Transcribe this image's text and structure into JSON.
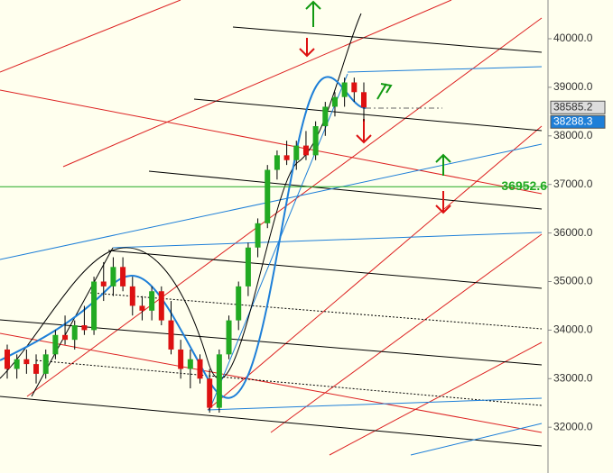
{
  "chart_data": {
    "type": "candlestick",
    "ylim": [
      31057,
      40798
    ],
    "yticks": [
      {
        "value": 32000,
        "label": "32000.0"
      },
      {
        "value": 33000,
        "label": "33000.0"
      },
      {
        "value": 34000,
        "label": "34000.0"
      },
      {
        "value": 35000,
        "label": "35000.0"
      },
      {
        "value": 36000,
        "label": "36000.0"
      },
      {
        "value": 37000,
        "label": "37000.0"
      },
      {
        "value": 38000,
        "label": "38000.0"
      },
      {
        "value": 39000,
        "label": "39000.0"
      },
      {
        "value": 40000,
        "label": "40000.0"
      }
    ],
    "up_color": "#22aa22",
    "down_color": "#dd1111",
    "open": [
      33600,
      33200,
      33400,
      33300,
      33100,
      33500,
      33900,
      33800,
      34100,
      34000,
      35000,
      34900,
      35300,
      34900,
      34500,
      34400,
      34800,
      34200,
      33600,
      33200,
      33400,
      33000,
      32400,
      33500,
      34200,
      34900,
      35700,
      36200,
      37300,
      37600,
      37500,
      37800,
      37600,
      38200,
      38600,
      38800,
      39100,
      38900
    ],
    "high": [
      33700,
      33500,
      33600,
      33500,
      33600,
      34000,
      34300,
      34200,
      34500,
      35100,
      35400,
      35500,
      35500,
      35100,
      34700,
      34900,
      34900,
      34600,
      33800,
      33600,
      33500,
      33200,
      33600,
      34300,
      35000,
      35800,
      36300,
      37400,
      37700,
      37900,
      37900,
      38100,
      38300,
      38700,
      38900,
      39200,
      39200,
      39100
    ],
    "low": [
      33000,
      33000,
      33100,
      32900,
      33000,
      33400,
      33700,
      33600,
      33900,
      33900,
      34600,
      34700,
      34800,
      34300,
      34200,
      34200,
      34100,
      33500,
      33000,
      32800,
      32900,
      32300,
      32300,
      33400,
      34000,
      34700,
      35500,
      36100,
      37100,
      37400,
      37300,
      37500,
      37500,
      38000,
      38400,
      38600,
      38700,
      38300
    ],
    "close": [
      33200,
      33400,
      33300,
      33100,
      33500,
      33900,
      33800,
      34100,
      34000,
      35000,
      34900,
      35300,
      34900,
      34500,
      34400,
      34800,
      34200,
      33600,
      33200,
      33400,
      33000,
      32400,
      33500,
      34200,
      34900,
      35700,
      36200,
      37300,
      37600,
      37500,
      37800,
      37600,
      38200,
      38600,
      38800,
      39100,
      38900,
      38585.2
    ],
    "last_price": 38585.2,
    "bid_price": 38288.3,
    "hline": {
      "value": 36952.6,
      "color": "#22aa22"
    }
  }
}
